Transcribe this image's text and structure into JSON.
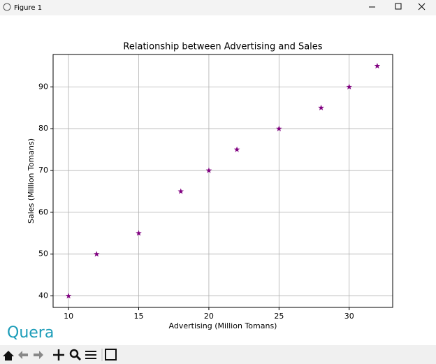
{
  "window_title": "Figure 1",
  "watermark": "Quera",
  "chart_data": {
    "type": "scatter",
    "title": "Relationship between Advertising and Sales",
    "xlabel": "Advertising (Million Tomans)",
    "ylabel": "Sales (Million Tomans)",
    "x": [
      10,
      12,
      15,
      18,
      20,
      22,
      25,
      28,
      30,
      32
    ],
    "values": [
      40,
      50,
      55,
      65,
      70,
      75,
      80,
      85,
      90,
      95
    ],
    "color": "#800080",
    "marker": "star",
    "xlim": [
      8.9,
      33.1
    ],
    "ylim": [
      37.25,
      97.75
    ],
    "xticks": [
      10,
      15,
      20,
      25,
      30
    ],
    "yticks": [
      40,
      50,
      60,
      70,
      80,
      90
    ],
    "grid": true
  }
}
